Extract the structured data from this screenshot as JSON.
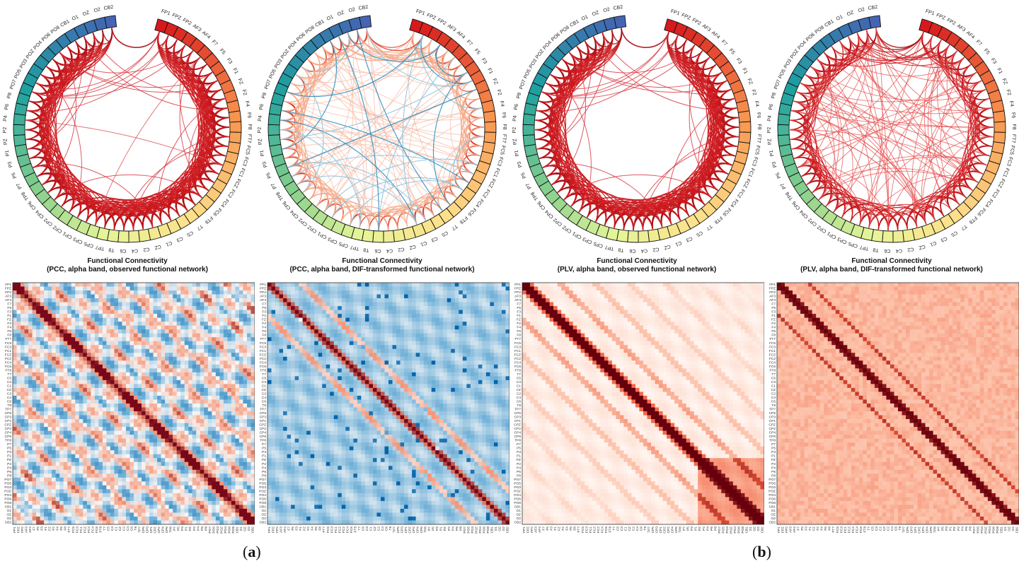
{
  "panels": [
    {
      "title_line1": "Functional Connectivity",
      "title_line2": "(PCC, alpha band, observed functional network)",
      "mode": "pcc_obs",
      "matrix_style": "diverging"
    },
    {
      "title_line1": "Functional Connectivity",
      "title_line2": "(PCC, alpha band, DIF-transformed functional network)",
      "mode": "pcc_dif",
      "matrix_style": "diverging"
    },
    {
      "title_line1": "Functional Connectivity",
      "title_line2": "(PLV, alpha band, observed functional network)",
      "mode": "plv_obs",
      "matrix_style": "reds"
    },
    {
      "title_line1": "Functional Connectivity",
      "title_line2": "(PLV, alpha band, DIF-transformed functional network)",
      "mode": "plv_dif",
      "matrix_style": "reds"
    }
  ],
  "channels": [
    "FP1",
    "FPZ",
    "FP2",
    "AF3",
    "AF4",
    "F7",
    "F5",
    "F3",
    "F1",
    "FZ",
    "F2",
    "F4",
    "F6",
    "F8",
    "FT7",
    "FC5",
    "FC3",
    "FC1",
    "FCZ",
    "FC2",
    "FC4",
    "FC6",
    "FT8",
    "T7",
    "C5",
    "C3",
    "C1",
    "CZ",
    "C2",
    "C4",
    "C6",
    "T8",
    "TP7",
    "CP5",
    "CP3",
    "CP1",
    "CPZ",
    "CP2",
    "CP4",
    "CP6",
    "TP8",
    "P7",
    "P5",
    "P3",
    "P1",
    "PZ",
    "P2",
    "P4",
    "P6",
    "P8",
    "PO7",
    "PO5",
    "PO3",
    "POZ",
    "PO4",
    "PO6",
    "PO8",
    "CB1",
    "O1",
    "OZ",
    "O2",
    "CB2"
  ],
  "sublabels": {
    "a": "a",
    "b": "b"
  },
  "colors": {
    "dark_red": "#a50f15",
    "red": "#cb181d",
    "light_red": "#fc9272",
    "blue": "#2b8cbe",
    "light_blue": "#9ecae1",
    "white": "#ffffff"
  }
}
